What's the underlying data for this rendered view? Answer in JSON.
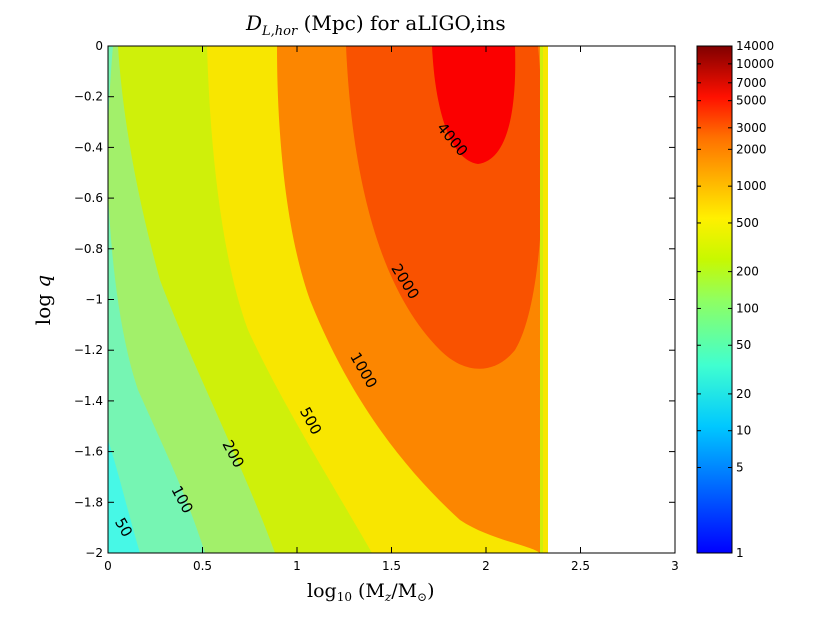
{
  "chart_data": {
    "type": "contour",
    "title_main": "D",
    "title_sub": "L,hor",
    "title_rest": " (Mpc) for aLIGO,ins",
    "xlabel_prefix": "log",
    "xlabel_sub": "10",
    "xlabel_rest": " (M",
    "xlabel_z": "z",
    "xlabel_slash": "/M",
    "xlabel_sun": "⊙",
    "xlabel_close": ")",
    "ylabel_prefix": "log ",
    "ylabel_var": "q",
    "xlim": [
      0,
      3
    ],
    "ylim": [
      -2,
      0
    ],
    "xticks": [
      {
        "v": 0,
        "label": "0"
      },
      {
        "v": 0.5,
        "label": "0.5"
      },
      {
        "v": 1,
        "label": "1"
      },
      {
        "v": 1.5,
        "label": "1.5"
      },
      {
        "v": 2,
        "label": "2"
      },
      {
        "v": 2.5,
        "label": "2.5"
      },
      {
        "v": 3,
        "label": "3"
      }
    ],
    "yticks": [
      {
        "v": 0,
        "label": "0"
      },
      {
        "v": -0.2,
        "label": "−0.2"
      },
      {
        "v": -0.4,
        "label": "−0.4"
      },
      {
        "v": -0.6,
        "label": "−0.6"
      },
      {
        "v": -0.8,
        "label": "−0.8"
      },
      {
        "v": -1,
        "label": "−1"
      },
      {
        "v": -1.2,
        "label": "−1.2"
      },
      {
        "v": -1.4,
        "label": "−1.4"
      },
      {
        "v": -1.6,
        "label": "−1.6"
      },
      {
        "v": -1.8,
        "label": "−1.8"
      },
      {
        "v": -2,
        "label": "−2"
      }
    ],
    "data_cutoff_x": 2.33,
    "contour_levels": [
      {
        "level": 50,
        "label": "50",
        "color": "#76f5b3"
      },
      {
        "level": 100,
        "label": "100",
        "color": "#a2f06a"
      },
      {
        "level": 200,
        "label": "200",
        "color": "#cff00a"
      },
      {
        "level": 500,
        "label": "500",
        "color": "#f8e600"
      },
      {
        "level": 1000,
        "label": "1000",
        "color": "#fc8600"
      },
      {
        "level": 2000,
        "label": "2000",
        "color": "#f95200"
      },
      {
        "level": 4000,
        "label": "4000",
        "color": "#fb0000"
      }
    ],
    "base_region_color": "#47f8e6",
    "contour_labels": [
      {
        "text": "50",
        "x": 0.08,
        "y": -1.9,
        "angle": 60
      },
      {
        "text": "100",
        "x": 0.39,
        "y": -1.79,
        "angle": 62
      },
      {
        "text": "200",
        "x": 0.66,
        "y": -1.61,
        "angle": 62
      },
      {
        "text": "500",
        "x": 1.07,
        "y": -1.48,
        "angle": 62
      },
      {
        "text": "1000",
        "x": 1.35,
        "y": -1.28,
        "angle": 60
      },
      {
        "text": "2000",
        "x": 1.57,
        "y": -0.93,
        "angle": 58
      },
      {
        "text": "4000",
        "x": 1.82,
        "y": -0.37,
        "angle": 50
      }
    ],
    "colorbar": {
      "scale": "log",
      "range": [
        1,
        14000
      ],
      "ticks": [
        {
          "v": 14000,
          "label": "14000"
        },
        {
          "v": 10000,
          "label": "10000"
        },
        {
          "v": 7000,
          "label": "7000"
        },
        {
          "v": 5000,
          "label": "5000"
        },
        {
          "v": 3000,
          "label": "3000"
        },
        {
          "v": 2000,
          "label": "2000"
        },
        {
          "v": 1000,
          "label": "1000"
        },
        {
          "v": 500,
          "label": "500"
        },
        {
          "v": 200,
          "label": "200"
        },
        {
          "v": 100,
          "label": "100"
        },
        {
          "v": 50,
          "label": "50"
        },
        {
          "v": 20,
          "label": "20"
        },
        {
          "v": 10,
          "label": "10"
        },
        {
          "v": 5,
          "label": "5"
        },
        {
          "v": 1,
          "label": "1"
        }
      ]
    }
  }
}
